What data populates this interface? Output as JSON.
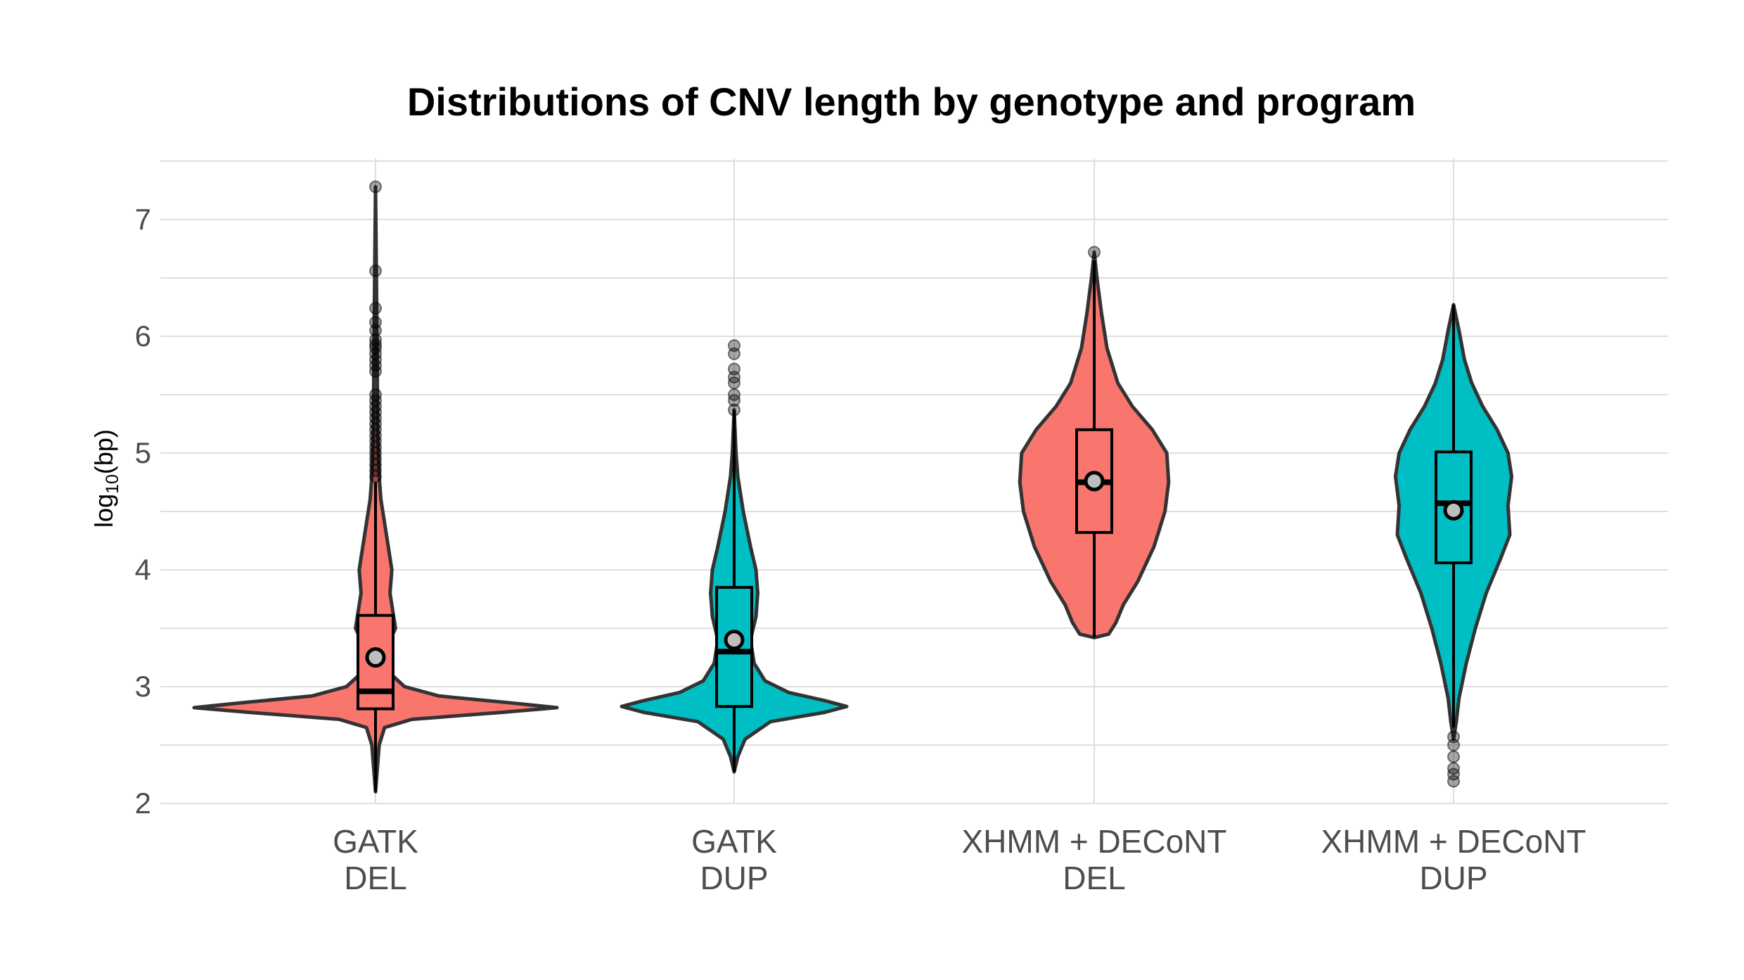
{
  "chart_data": {
    "type": "violin",
    "title": "Distributions of CNV length by genotype and program",
    "xlabel": "",
    "ylabel": {
      "base": "log",
      "subscript": "10",
      "rest": "(bp)"
    },
    "ylim": [
      1.85,
      7.5
    ],
    "yticks": [
      "2",
      "3",
      "4",
      "5",
      "6",
      "7"
    ],
    "grid": true,
    "legend": "none",
    "colors": {
      "DEL": "#F8766D",
      "DUP": "#00BFC4",
      "outline": "#333333",
      "mean_point": "#BEBEBE"
    },
    "categories": [
      {
        "label_line1": "GATK",
        "label_line2": "DEL"
      },
      {
        "label_line1": "GATK",
        "label_line2": "DUP"
      },
      {
        "label_line1": "XHMM + DECoNT",
        "label_line2": "DEL"
      },
      {
        "label_line1": "XHMM + DECoNT",
        "label_line2": "DUP"
      }
    ],
    "series": [
      {
        "genotype": "DEL",
        "box": {
          "q1": 2.81,
          "median": 2.96,
          "q3": 3.61,
          "whisker_low": 2.1,
          "whisker_high": 4.75
        },
        "mean": 3.25,
        "outliers": [
          7.28,
          6.56,
          6.24,
          6.12,
          6.05,
          5.97,
          5.93,
          5.9,
          5.85,
          5.8,
          5.75,
          5.7,
          5.5,
          5.45,
          5.4,
          5.35,
          5.3,
          5.25,
          5.2,
          5.15,
          5.1,
          5.05,
          5.0,
          4.95,
          4.9,
          4.85,
          4.8
        ],
        "density": [
          [
            2.1,
            0.0
          ],
          [
            2.3,
            0.01
          ],
          [
            2.5,
            0.02
          ],
          [
            2.65,
            0.05
          ],
          [
            2.72,
            0.2
          ],
          [
            2.78,
            0.7
          ],
          [
            2.82,
            1.0
          ],
          [
            2.86,
            0.75
          ],
          [
            2.92,
            0.35
          ],
          [
            3.0,
            0.16
          ],
          [
            3.1,
            0.09
          ],
          [
            3.25,
            0.08
          ],
          [
            3.4,
            0.08
          ],
          [
            3.5,
            0.11
          ],
          [
            3.6,
            0.1
          ],
          [
            3.8,
            0.08
          ],
          [
            4.0,
            0.09
          ],
          [
            4.2,
            0.07
          ],
          [
            4.4,
            0.05
          ],
          [
            4.6,
            0.03
          ],
          [
            4.8,
            0.02
          ],
          [
            5.2,
            0.012
          ],
          [
            6.0,
            0.008
          ],
          [
            7.28,
            0.0
          ]
        ]
      },
      {
        "genotype": "DUP",
        "box": {
          "q1": 2.83,
          "median": 3.3,
          "q3": 3.85,
          "whisker_low": 2.27,
          "whisker_high": 5.37
        },
        "mean": 3.4,
        "outliers": [
          5.92,
          5.85,
          5.72,
          5.65,
          5.6,
          5.5,
          5.45,
          5.37
        ],
        "density": [
          [
            2.27,
            0.0
          ],
          [
            2.4,
            0.02
          ],
          [
            2.55,
            0.06
          ],
          [
            2.7,
            0.2
          ],
          [
            2.78,
            0.5
          ],
          [
            2.83,
            0.62
          ],
          [
            2.88,
            0.5
          ],
          [
            2.95,
            0.3
          ],
          [
            3.05,
            0.17
          ],
          [
            3.2,
            0.11
          ],
          [
            3.4,
            0.09
          ],
          [
            3.6,
            0.12
          ],
          [
            3.8,
            0.13
          ],
          [
            4.0,
            0.12
          ],
          [
            4.2,
            0.09
          ],
          [
            4.5,
            0.05
          ],
          [
            4.8,
            0.02
          ],
          [
            5.0,
            0.01
          ],
          [
            5.37,
            0.0
          ]
        ]
      },
      {
        "genotype": "DEL",
        "box": {
          "q1": 4.32,
          "median": 4.75,
          "q3": 5.2,
          "whisker_low": 3.42,
          "whisker_high": 6.65
        },
        "mean": 4.76,
        "outliers": [
          6.72
        ],
        "density": [
          [
            3.42,
            0.0
          ],
          [
            3.45,
            0.08
          ],
          [
            3.55,
            0.12
          ],
          [
            3.7,
            0.16
          ],
          [
            3.9,
            0.24
          ],
          [
            4.2,
            0.33
          ],
          [
            4.5,
            0.39
          ],
          [
            4.75,
            0.41
          ],
          [
            5.0,
            0.4
          ],
          [
            5.2,
            0.32
          ],
          [
            5.4,
            0.21
          ],
          [
            5.6,
            0.13
          ],
          [
            5.9,
            0.07
          ],
          [
            6.2,
            0.04
          ],
          [
            6.5,
            0.015
          ],
          [
            6.72,
            0.0
          ]
        ]
      },
      {
        "genotype": "DUP",
        "box": {
          "q1": 4.06,
          "median": 4.57,
          "q3": 5.01,
          "whisker_low": 2.65,
          "whisker_high": 6.27
        },
        "mean": 4.51,
        "outliers": [
          2.57,
          2.5,
          2.4,
          2.3,
          2.25,
          2.19
        ],
        "density": [
          [
            2.55,
            0.0
          ],
          [
            2.7,
            0.015
          ],
          [
            2.9,
            0.03
          ],
          [
            3.2,
            0.07
          ],
          [
            3.5,
            0.12
          ],
          [
            3.8,
            0.18
          ],
          [
            4.1,
            0.26
          ],
          [
            4.3,
            0.31
          ],
          [
            4.55,
            0.3
          ],
          [
            4.8,
            0.32
          ],
          [
            5.0,
            0.3
          ],
          [
            5.2,
            0.24
          ],
          [
            5.4,
            0.16
          ],
          [
            5.6,
            0.1
          ],
          [
            5.8,
            0.06
          ],
          [
            6.05,
            0.03
          ],
          [
            6.27,
            0.0
          ]
        ]
      }
    ]
  }
}
